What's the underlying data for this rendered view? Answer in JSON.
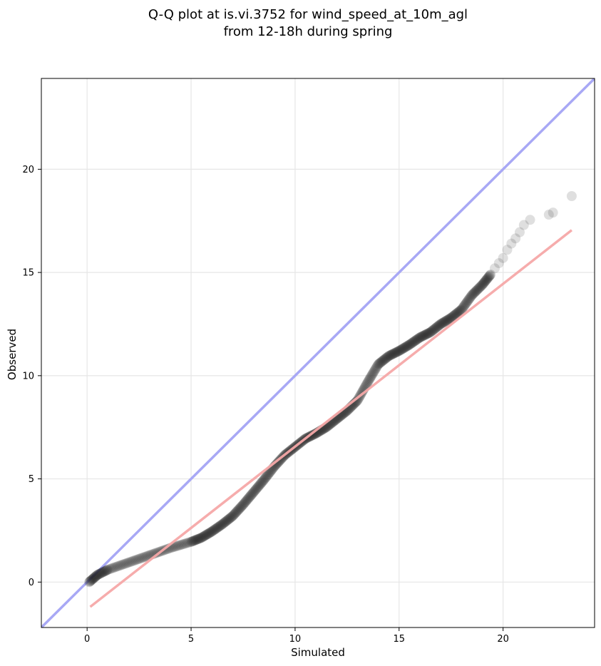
{
  "chart_data": {
    "type": "scatter",
    "title": "Q-Q plot at is.vi.3752 for wind_speed_at_10m_agl",
    "subtitle": "from 12-18h during spring",
    "xlabel": "Simulated",
    "ylabel": "Observed",
    "xlim": [
      -2.2,
      24.4
    ],
    "ylim": [
      -2.2,
      24.4
    ],
    "xticks": [
      0,
      5,
      10,
      15,
      20
    ],
    "yticks": [
      0,
      5,
      10,
      15,
      20
    ],
    "grid": true,
    "reference_line": {
      "x": [
        -2.2,
        24.4
      ],
      "y": [
        -2.2,
        24.4
      ],
      "color": "#a8a8f5"
    },
    "fit_line": {
      "x": [
        0.15,
        23.3
      ],
      "y": [
        -1.2,
        17.05
      ],
      "color": "#f5a8a8"
    },
    "points_color": "#1e1e1e",
    "quantile_curve": {
      "x": [
        0.1,
        0.5,
        1.0,
        2.0,
        3.0,
        4.0,
        5.0,
        5.5,
        6.0,
        6.5,
        7.0,
        7.5,
        8.0,
        8.5,
        9.0,
        9.5,
        10.0,
        10.5,
        11.0,
        11.5,
        12.0,
        12.5,
        13.0,
        13.5,
        14.0,
        14.5,
        15.0,
        15.5,
        16.0,
        16.5,
        17.0,
        17.5,
        18.0,
        18.5,
        19.0,
        19.4
      ],
      "y": [
        0.0,
        0.35,
        0.6,
        0.95,
        1.3,
        1.65,
        1.95,
        2.15,
        2.45,
        2.8,
        3.2,
        3.75,
        4.35,
        4.95,
        5.6,
        6.15,
        6.55,
        6.95,
        7.2,
        7.5,
        7.9,
        8.3,
        8.8,
        9.7,
        10.55,
        10.95,
        11.2,
        11.5,
        11.85,
        12.1,
        12.5,
        12.8,
        13.2,
        13.9,
        14.4,
        14.9
      ]
    },
    "tail_points": {
      "x": [
        19.6,
        19.8,
        20.0,
        20.2,
        20.4,
        20.6,
        20.8,
        21.0,
        21.3,
        22.2,
        22.4,
        23.3
      ],
      "y": [
        15.2,
        15.45,
        15.7,
        16.1,
        16.4,
        16.65,
        16.95,
        17.3,
        17.55,
        17.8,
        17.9,
        18.7
      ]
    }
  }
}
